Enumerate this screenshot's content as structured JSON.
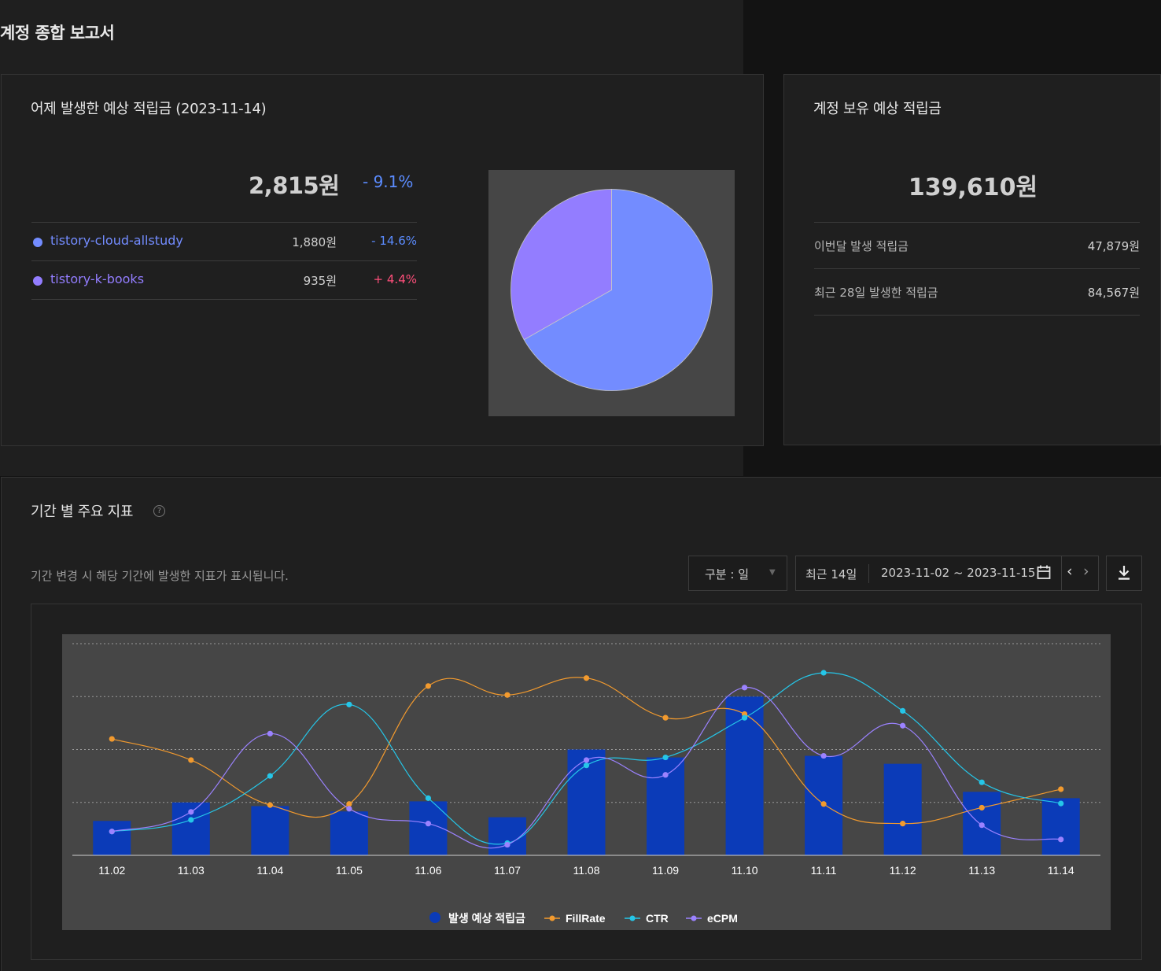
{
  "page": {
    "title": "계정 종합 보고서"
  },
  "yesterday": {
    "title": "어제 발생한 예상 적립금 (2023-11-14)",
    "total": "2,815원",
    "change": "- 9.1%",
    "change_color": "#5b8cff",
    "blogs": [
      {
        "name": "tistory-cloud-allstudy",
        "amount": "1,880원",
        "change": "- 14.6%",
        "color": "#738cff",
        "change_color": "#5b8cff"
      },
      {
        "name": "tistory-k-books",
        "amount": "935원",
        "change": "+ 4.4%",
        "color": "#937dff",
        "change_color": "#ff4f7b"
      }
    ],
    "pie": {
      "slices": [
        {
          "label": "tistory-cloud-allstudy",
          "value": 1880,
          "color": "#738cff"
        },
        {
          "label": "tistory-k-books",
          "value": 935,
          "color": "#937dff"
        }
      ]
    }
  },
  "account": {
    "title": "계정 보유 예상 적립금",
    "total": "139,610원",
    "rows": [
      {
        "label": "이번달 발생 적립금",
        "value": "47,879원"
      },
      {
        "label": "최근 28일 발생한 적립금",
        "value": "84,567원"
      }
    ]
  },
  "period": {
    "title": "기간 별 주요 지표",
    "description": "기간 변경 시 해당 기간에 발생한 지표가 표시됩니다.",
    "unit_select": "구분 : 일",
    "range_preset": "최근 14일",
    "range_dates": "2023-11-02 ~ 2023-11-15",
    "icons": {
      "help": "help-circle-icon",
      "calendar": "calendar-icon",
      "prev": "chevron-left-icon",
      "next": "chevron-right-icon",
      "download": "download-icon"
    }
  },
  "chart_data": {
    "type": "bar",
    "categories": [
      "11.02",
      "11.03",
      "11.04",
      "11.05",
      "11.06",
      "11.07",
      "11.08",
      "11.09",
      "11.10",
      "11.11",
      "11.12",
      "11.13",
      "11.14"
    ],
    "grid": true,
    "legend_position": "bottom",
    "series": [
      {
        "name": "발생 예상 적립금",
        "type": "bar",
        "color": "#0b3bb8",
        "values": [
          0.65,
          1.0,
          0.93,
          0.83,
          1.02,
          0.72,
          2.0,
          1.85,
          3.0,
          1.88,
          1.73,
          1.2,
          1.08
        ]
      },
      {
        "name": "FillRate",
        "type": "line",
        "color": "#f29a2e",
        "values": [
          2.2,
          1.8,
          0.95,
          0.97,
          3.2,
          3.03,
          3.35,
          2.6,
          2.67,
          0.97,
          0.6,
          0.9,
          1.25
        ]
      },
      {
        "name": "CTR",
        "type": "line",
        "color": "#25c6e8",
        "values": [
          0.45,
          0.67,
          1.5,
          2.85,
          1.08,
          0.23,
          1.7,
          1.85,
          2.6,
          3.45,
          2.73,
          1.38,
          0.98
        ]
      },
      {
        "name": "eCPM",
        "type": "line",
        "color": "#9b82ff",
        "values": [
          0.45,
          0.82,
          2.3,
          0.88,
          0.6,
          0.2,
          1.8,
          1.52,
          3.17,
          1.88,
          2.45,
          0.57,
          0.3
        ]
      }
    ],
    "ylim": [
      0,
      4
    ]
  }
}
